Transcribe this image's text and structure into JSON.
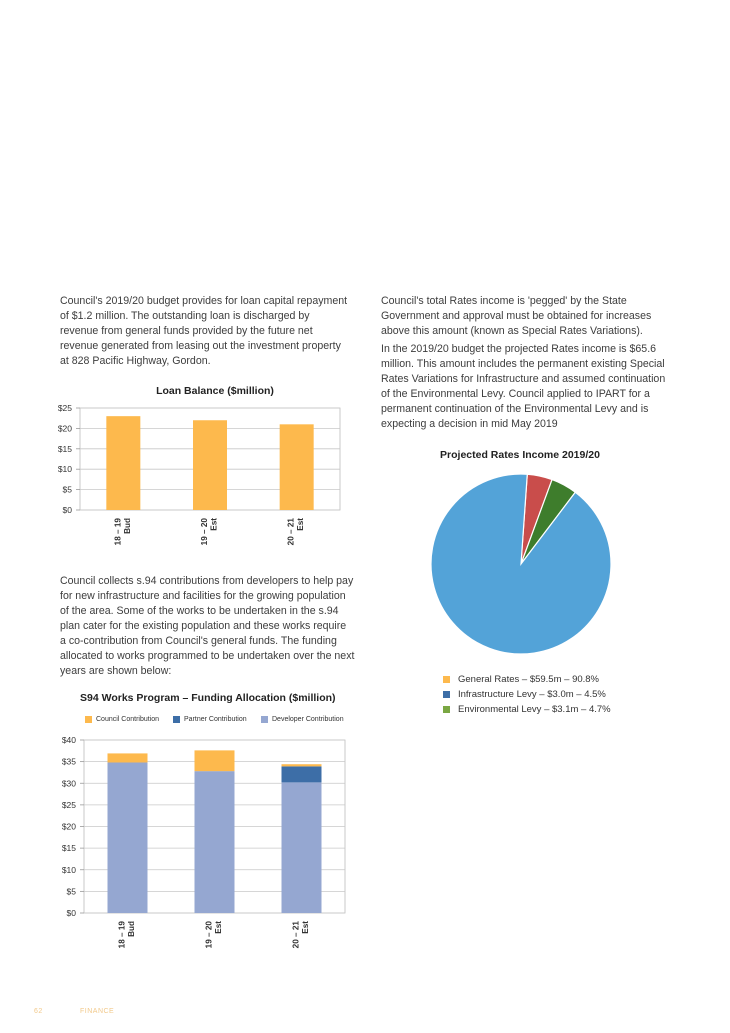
{
  "paragraphs": {
    "loan_intro": "Council's 2019/20 budget provides for loan capital repayment of $1.2 million. The outstanding loan is discharged by revenue from general funds provided by the future net revenue generated from leasing out the investment property at 828 Pacific Highway, Gordon.",
    "s94_intro": "Council collects s.94 contributions from developers to help pay for new infrastructure and facilities for the growing population of the area. Some of the works to be undertaken in the s.94 plan cater for the existing population and these works require a co-contribution from Council's general funds. The funding allocated to works programmed to be undertaken over the next years are shown below:",
    "rates_pegged": "Council's total Rates income is 'pegged' by the State Government and approval must be obtained for increases above this amount (known as Special Rates Variations).",
    "rates_projected": "In the 2019/20 budget the projected Rates income is $65.6 million. This amount includes the permanent existing Special Rates Variations for Infrastructure and assumed continuation of the Environmental Levy. Council applied to IPART for a permanent continuation of the Environmental Levy and is expecting a decision in mid May 2019"
  },
  "footer": {
    "page_number": "62",
    "section": "FINANCE"
  },
  "chart_data": [
    {
      "type": "bar",
      "title": "Loan Balance ($million)",
      "categories": [
        "18 – 19|Bud",
        "19 – 20|Est",
        "20 – 21|Est"
      ],
      "values": [
        23,
        22,
        21
      ],
      "ylim": [
        0,
        25
      ],
      "yticks": [
        "$0",
        "$5",
        "$10",
        "$15",
        "$20",
        "$25"
      ],
      "color": "#fdb94d",
      "grid": true
    },
    {
      "type": "bar",
      "stacked": true,
      "title": "S94 Works Program – Funding Allocation ($million)",
      "categories": [
        "18 – 19|Bud",
        "19 – 20|Est",
        "20 – 21|Est"
      ],
      "legend": [
        "Council Contribution",
        "Partner Contribution",
        "Developer Contribution"
      ],
      "series": [
        {
          "name": "Developer Contribution",
          "values": [
            34.8,
            32.8,
            30.2
          ],
          "color": "#95a7d1"
        },
        {
          "name": "Partner Contribution",
          "values": [
            0,
            0,
            3.7
          ],
          "color": "#3d6ea7"
        },
        {
          "name": "Council Contribution",
          "values": [
            2.1,
            4.8,
            0.5
          ],
          "color": "#fdb94d"
        }
      ],
      "legend_colors": [
        "#fdb94d",
        "#3d6ea7",
        "#95a7d1"
      ],
      "ylim": [
        0,
        40
      ],
      "yticks": [
        "$0",
        "$5",
        "$10",
        "$15",
        "$20",
        "$25",
        "$30",
        "$35",
        "$40"
      ],
      "grid": true,
      "legend_position": "top"
    },
    {
      "type": "pie",
      "title": "Projected Rates Income 2019/20",
      "slices": [
        {
          "label": "General Rates – $59.5m – 90.8%",
          "value": 90.8,
          "color": "#53a3d8",
          "legend_color": "#fdb94d"
        },
        {
          "label": "Infrastructure Levy – $3.0m – 4.5%",
          "value": 4.5,
          "color": "#c94d4b",
          "legend_color": "#3d6ea7"
        },
        {
          "label": "Environmental Levy – $3.1m – 4.7%",
          "value": 4.7,
          "color": "#3e7d2c",
          "legend_color": "#7aa743"
        }
      ],
      "legend_position": "bottom"
    }
  ]
}
